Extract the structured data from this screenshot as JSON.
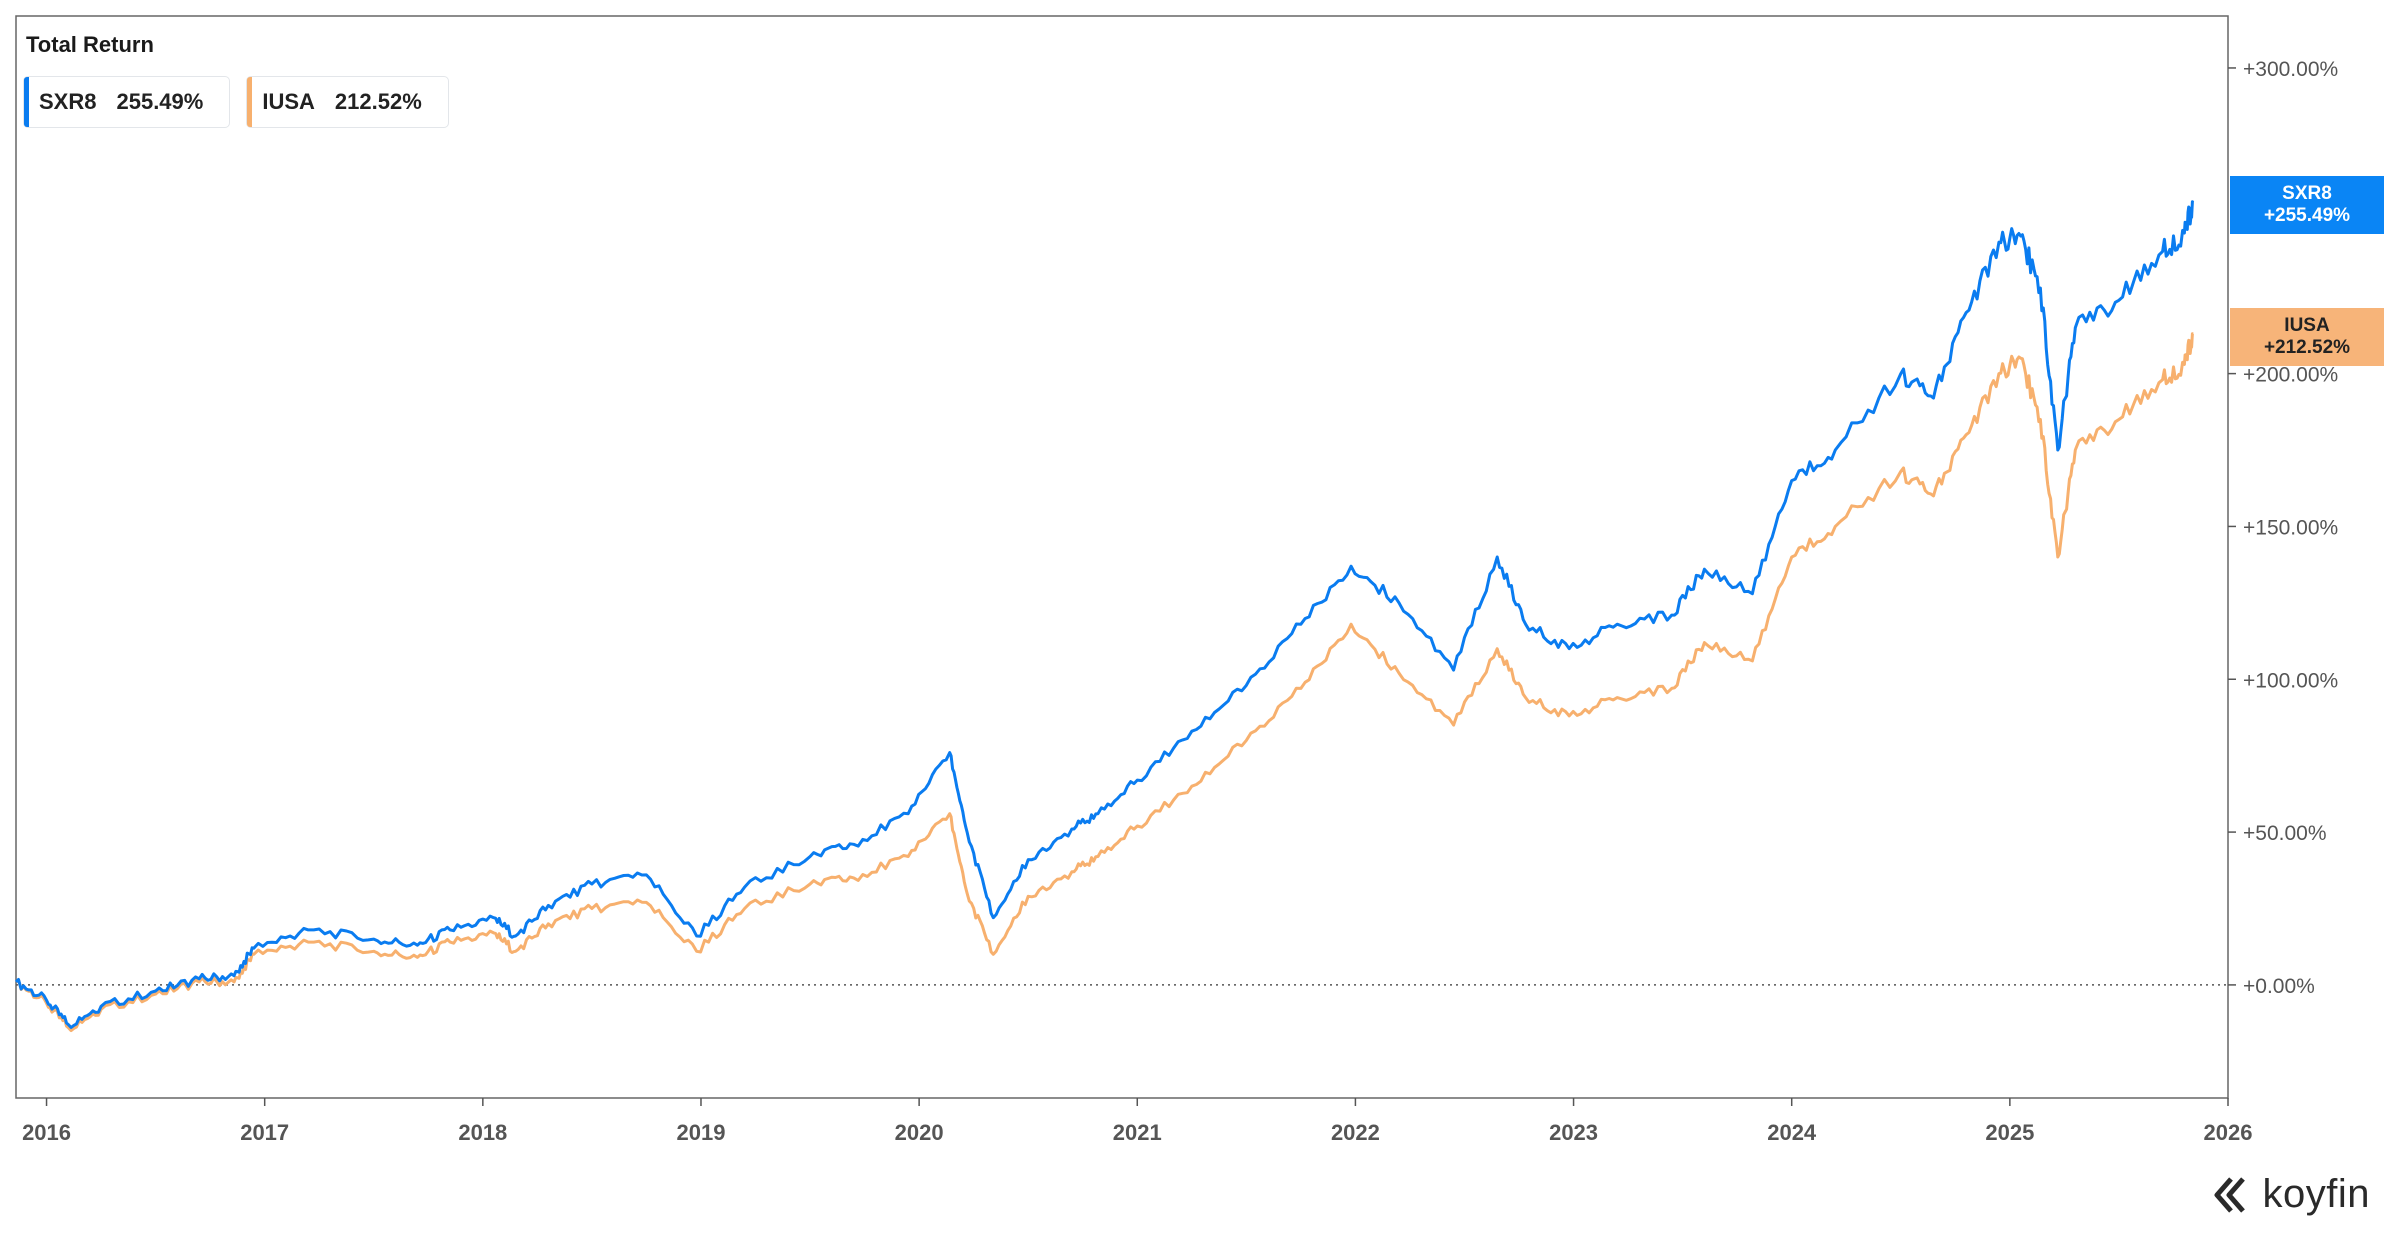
{
  "title": "Total Return",
  "legend": [
    {
      "ticker": "SXR8",
      "value": "255.49%",
      "color": "#0a7cf0"
    },
    {
      "ticker": "IUSA",
      "value": "212.52%",
      "color": "#f7b06e"
    }
  ],
  "end_labels": [
    {
      "ticker": "SXR8",
      "value": "+255.49%",
      "color": "#0a85f5"
    },
    {
      "ticker": "IUSA",
      "value": "+212.52%",
      "color": "#f7b479"
    }
  ],
  "brand": "koyfin",
  "colors": {
    "axis": "#555555",
    "frame": "#666666",
    "zero_line": "#555555"
  },
  "chart_data": {
    "type": "line",
    "title": "Total Return",
    "x_ticks": [
      "2016",
      "2017",
      "2018",
      "2019",
      "2020",
      "2021",
      "2022",
      "2023",
      "2024",
      "2025",
      "2026"
    ],
    "y_ticks": [
      "+0.00%",
      "+50.00%",
      "+100.00%",
      "+150.00%",
      "+200.00%",
      "+300.00%"
    ],
    "y_tick_values": [
      0,
      50,
      100,
      150,
      200,
      300
    ],
    "xlim": [
      2015.86,
      2026.0
    ],
    "ylim": [
      -37,
      317
    ],
    "zero_line": "dotted",
    "grid": false,
    "legend_position": "top-left",
    "series": [
      {
        "name": "SXR8",
        "x": [
          2015.86,
          2016.0,
          2016.1,
          2016.25,
          2016.5,
          2016.7,
          2016.86,
          2016.95,
          2017.2,
          2017.5,
          2017.7,
          2017.85,
          2018.05,
          2018.15,
          2018.3,
          2018.5,
          2018.75,
          2018.98,
          2019.2,
          2019.5,
          2019.7,
          2019.95,
          2020.14,
          2020.22,
          2020.34,
          2020.5,
          2020.7,
          2020.82,
          2021.0,
          2021.25,
          2021.5,
          2021.75,
          2021.98,
          2022.2,
          2022.45,
          2022.65,
          2022.78,
          2022.98,
          2023.2,
          2023.45,
          2023.6,
          2023.82,
          2024.0,
          2024.2,
          2024.5,
          2024.65,
          2024.8,
          2024.95,
          2025.05,
          2025.14,
          2025.22,
          2025.3,
          2025.5,
          2025.7,
          2025.8,
          2025.84
        ],
        "values": [
          1,
          -5,
          -13,
          -7,
          -2,
          2,
          3,
          12,
          18,
          15,
          13,
          18,
          22,
          16,
          26,
          33,
          36,
          16,
          32,
          42,
          46,
          56,
          76,
          50,
          22,
          41,
          51,
          56,
          67,
          83,
          98,
          118,
          137,
          125,
          103,
          140,
          118,
          110,
          118,
          121,
          136,
          128,
          165,
          175,
          200,
          192,
          220,
          243,
          245,
          228,
          175,
          215,
          224,
          240,
          246,
          256
        ]
      },
      {
        "name": "IUSA",
        "x": [
          2015.86,
          2016.0,
          2016.1,
          2016.25,
          2016.5,
          2016.7,
          2016.86,
          2016.95,
          2017.2,
          2017.5,
          2017.7,
          2017.85,
          2018.05,
          2018.15,
          2018.3,
          2018.5,
          2018.75,
          2018.98,
          2019.2,
          2019.5,
          2019.7,
          2019.95,
          2020.14,
          2020.22,
          2020.34,
          2020.5,
          2020.7,
          2020.82,
          2021.0,
          2021.25,
          2021.5,
          2021.75,
          2021.98,
          2022.2,
          2022.45,
          2022.65,
          2022.78,
          2022.98,
          2023.2,
          2023.45,
          2023.6,
          2023.82,
          2024.0,
          2024.2,
          2024.5,
          2024.65,
          2024.8,
          2024.95,
          2025.05,
          2025.14,
          2025.22,
          2025.3,
          2025.5,
          2025.7,
          2025.8,
          2025.84
        ],
        "values": [
          1,
          -6,
          -14,
          -8,
          -3,
          1,
          1,
          10,
          14,
          11,
          9,
          14,
          17,
          11,
          20,
          25,
          27,
          11,
          25,
          33,
          35,
          42,
          56,
          30,
          10,
          29,
          37,
          42,
          52,
          65,
          80,
          97,
          118,
          102,
          85,
          110,
          94,
          88,
          94,
          97,
          112,
          106,
          140,
          150,
          168,
          160,
          180,
          200,
          205,
          185,
          140,
          175,
          185,
          198,
          203,
          213
        ]
      }
    ]
  }
}
